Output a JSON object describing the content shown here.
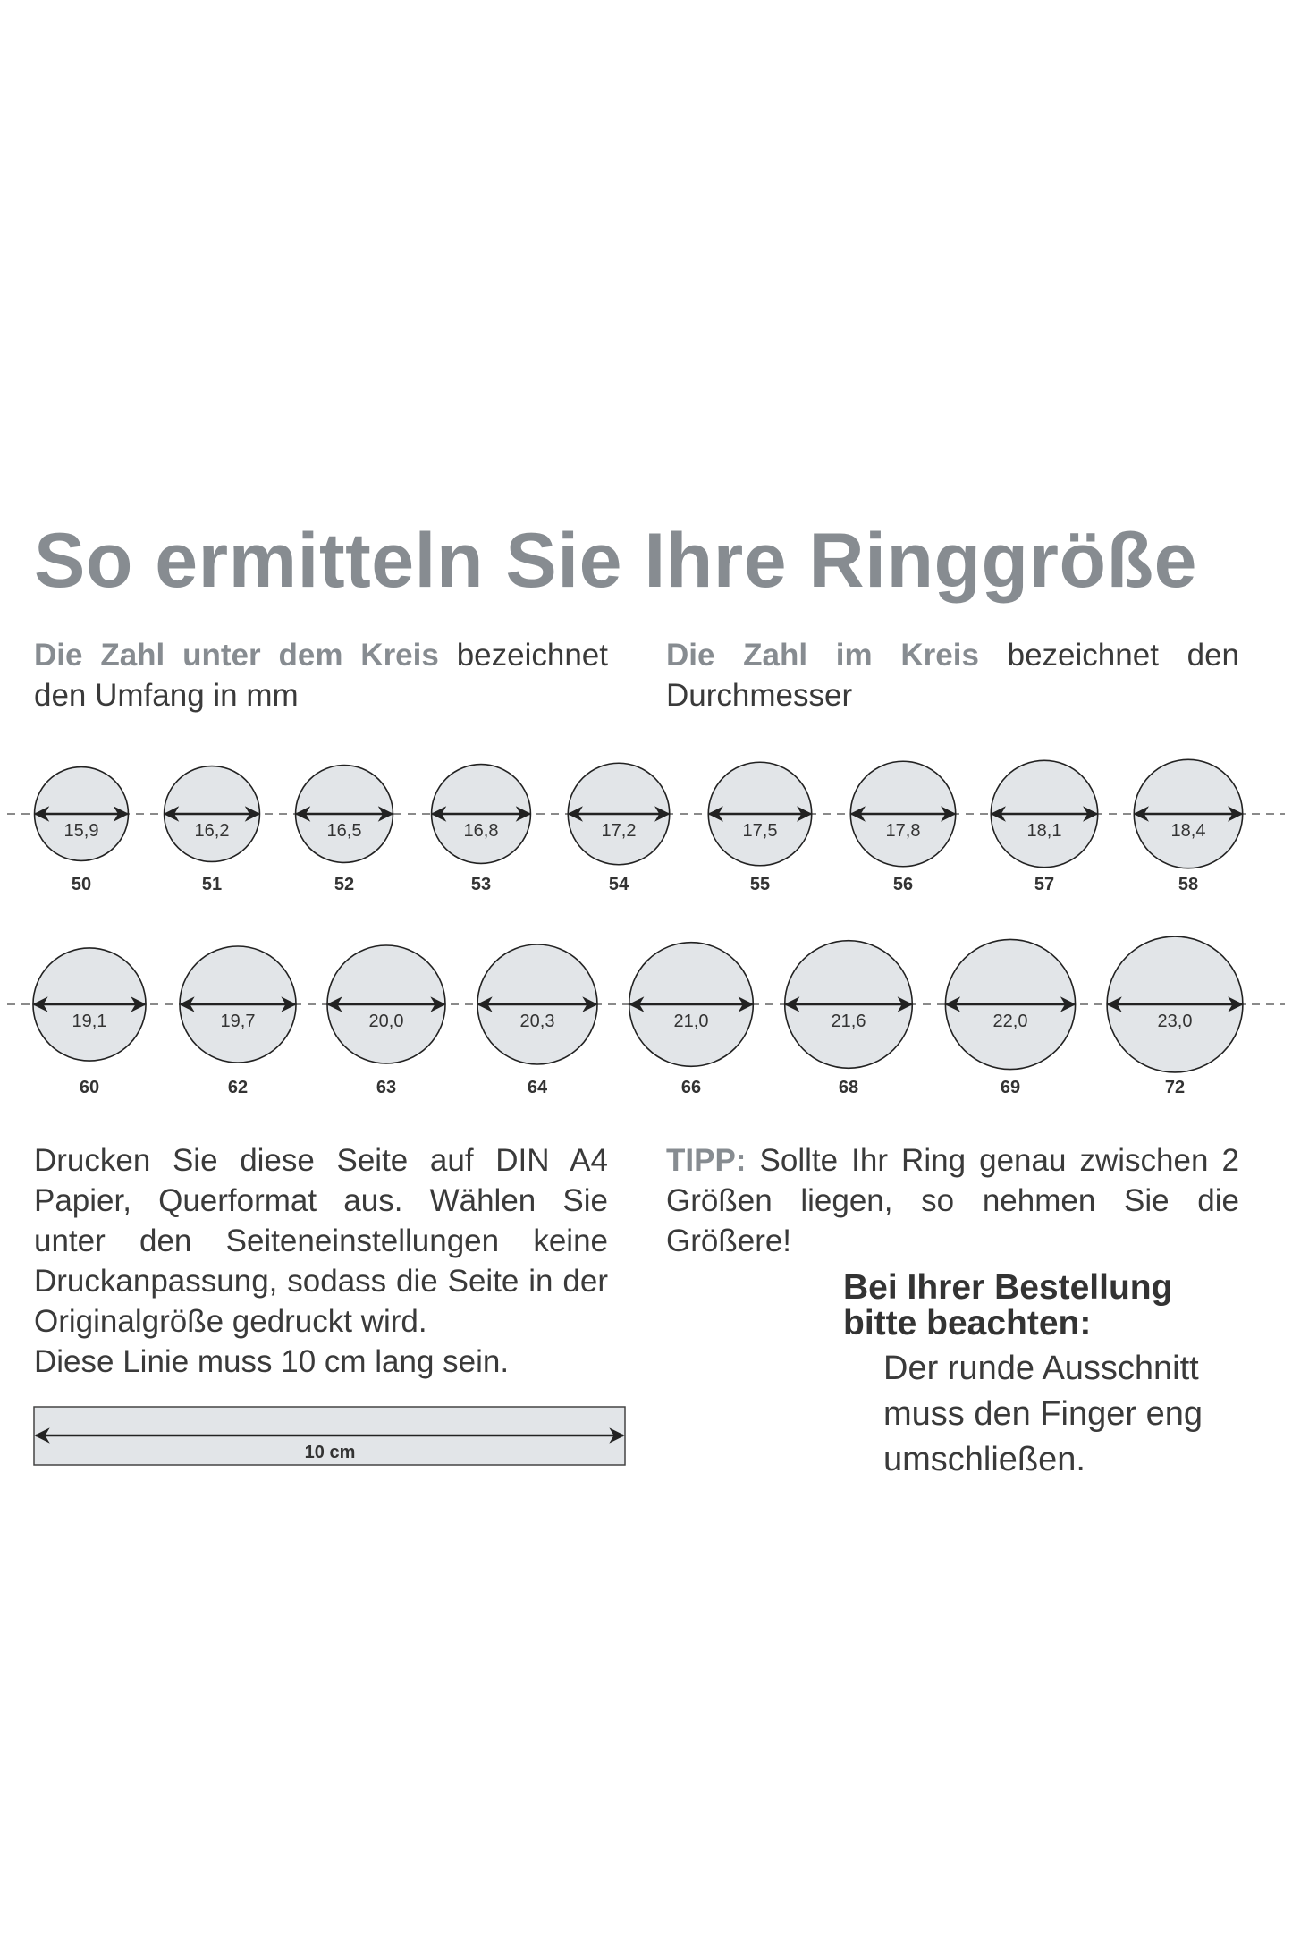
{
  "title": "So ermitteln Sie Ihre Ringgröße",
  "intro_left": {
    "highlight": "Die Zahl unter dem Kreis",
    "rest": " bezeichnet den Umfang in mm"
  },
  "intro_right": {
    "highlight": "Die Zahl im Kreis",
    "rest": " bezeichnet den Durchmesser"
  },
  "rings_row1": [
    {
      "diameter": "15,9",
      "size": "50"
    },
    {
      "diameter": "16,2",
      "size": "51"
    },
    {
      "diameter": "16,5",
      "size": "52"
    },
    {
      "diameter": "16,8",
      "size": "53"
    },
    {
      "diameter": "17,2",
      "size": "54"
    },
    {
      "diameter": "17,5",
      "size": "55"
    },
    {
      "diameter": "17,8",
      "size": "56"
    },
    {
      "diameter": "18,1",
      "size": "57"
    },
    {
      "diameter": "18,4",
      "size": "58"
    }
  ],
  "rings_row2": [
    {
      "diameter": "19,1",
      "size": "60"
    },
    {
      "diameter": "19,7",
      "size": "62"
    },
    {
      "diameter": "20,0",
      "size": "63"
    },
    {
      "diameter": "20,3",
      "size": "64"
    },
    {
      "diameter": "21,0",
      "size": "66"
    },
    {
      "diameter": "21,6",
      "size": "68"
    },
    {
      "diameter": "22,0",
      "size": "69"
    },
    {
      "diameter": "23,0",
      "size": "72"
    }
  ],
  "print_text": "Drucken Sie diese Seite auf DIN A4 Papier, Querformat aus. Wählen Sie unter den Seiteneinstellungen keine Druckanpassung, sodass die Seite in der Originalgröße gedruckt wird.",
  "line_text": "Diese Linie muss 10 cm lang sein.",
  "ruler_label": "10 cm",
  "tip": {
    "label": "TIPP:",
    "text": " Sollte Ihr Ring genau zwischen 2 Größen liegen, so nehmen Sie die Größere!"
  },
  "note": {
    "heading_1": "Bei Ihrer Bestellung",
    "heading_2": "bitte beachten:",
    "lines": [
      "Der runde Ausschnitt",
      "muss den Finger eng",
      "umschließen."
    ]
  },
  "colors": {
    "heading_gray": "#878c91",
    "circle_fill": "#e2e5e8",
    "text": "#3a3a3a"
  }
}
